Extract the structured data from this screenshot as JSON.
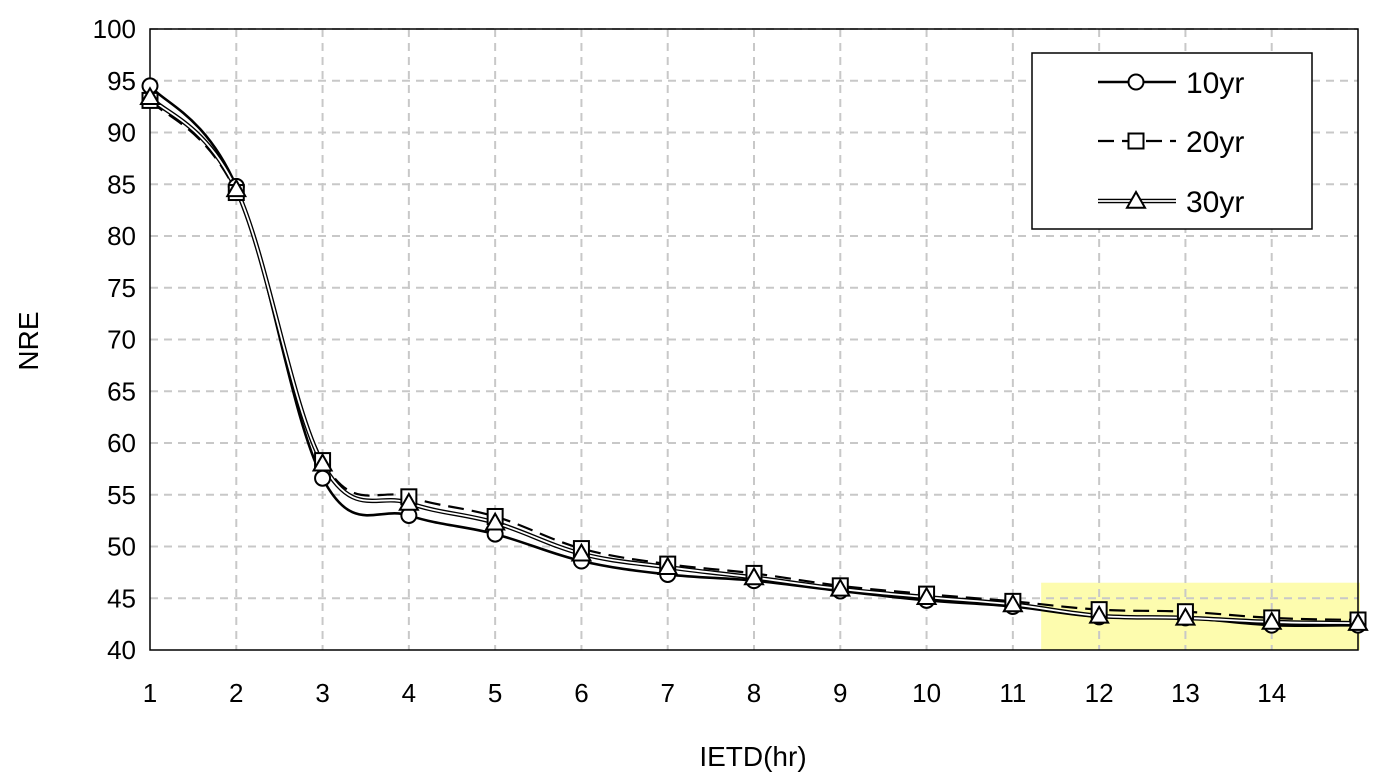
{
  "chart_data": {
    "type": "line",
    "title": "",
    "xlabel": "IETD(hr)",
    "ylabel": "NRE",
    "x": [
      1,
      2,
      3,
      4,
      5,
      6,
      7,
      8,
      9,
      10,
      11,
      12,
      13,
      14,
      15
    ],
    "x_tick_labels": [
      "1",
      "2",
      "3",
      "4",
      "5",
      "6",
      "7",
      "8",
      "9",
      "10",
      "11",
      "12",
      "13",
      "14"
    ],
    "y_tick_labels": [
      "40",
      "45",
      "50",
      "55",
      "60",
      "65",
      "70",
      "75",
      "80",
      "85",
      "90",
      "95",
      "100"
    ],
    "xlim": [
      1,
      15
    ],
    "ylim": [
      40,
      100
    ],
    "grid": true,
    "legend_position": "top-right",
    "highlight": {
      "x_range": [
        12,
        15
      ],
      "y_range": [
        40,
        46.5
      ],
      "color": "#fdfcae"
    },
    "series": [
      {
        "name": "10yr",
        "marker": "circle",
        "line_style": "solid",
        "values": [
          94.5,
          84.8,
          56.6,
          53.0,
          51.2,
          48.6,
          47.3,
          46.7,
          45.7,
          44.8,
          44.2,
          43.2,
          43.1,
          42.4,
          42.4
        ]
      },
      {
        "name": "20yr",
        "marker": "square",
        "line_style": "dashed",
        "values": [
          93.1,
          84.2,
          58.3,
          54.8,
          52.9,
          49.8,
          48.3,
          47.4,
          46.2,
          45.4,
          44.7,
          43.9,
          43.7,
          43.1,
          42.9
        ]
      },
      {
        "name": "30yr",
        "marker": "triangle",
        "line_style": "double",
        "values": [
          93.4,
          84.5,
          58.0,
          54.2,
          52.3,
          49.3,
          48.0,
          47.0,
          45.9,
          45.1,
          44.4,
          43.3,
          43.1,
          42.7,
          42.6
        ]
      }
    ]
  }
}
